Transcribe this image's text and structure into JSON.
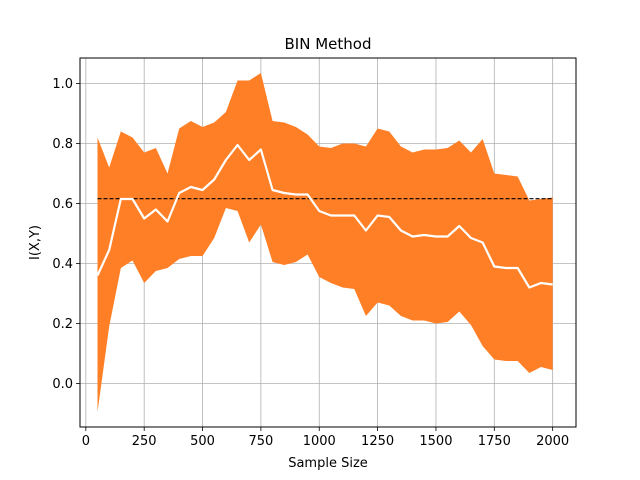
{
  "chart_data": {
    "type": "area",
    "title": "BIN Method",
    "xlabel": "Sample Size",
    "ylabel": "I(X,Y)",
    "xlim": [
      -25,
      2100
    ],
    "ylim": [
      -0.145,
      1.085
    ],
    "xticks": [
      0,
      250,
      500,
      750,
      1000,
      1250,
      1500,
      1750,
      2000
    ],
    "yticks": [
      0.0,
      0.2,
      0.4,
      0.6,
      0.8,
      1.0
    ],
    "xtick_labels": [
      "0",
      "250",
      "500",
      "750",
      "1000",
      "1250",
      "1500",
      "1750",
      "2000"
    ],
    "ytick_labels": [
      "0.0",
      "0.2",
      "0.4",
      "0.6",
      "0.8",
      "1.0"
    ],
    "grid": true,
    "x": [
      50,
      100,
      150,
      200,
      250,
      300,
      350,
      400,
      450,
      500,
      550,
      600,
      650,
      700,
      750,
      800,
      850,
      900,
      950,
      1000,
      1050,
      1100,
      1150,
      1200,
      1250,
      1300,
      1350,
      1400,
      1450,
      1500,
      1550,
      1600,
      1650,
      1700,
      1750,
      1800,
      1850,
      1900,
      1950,
      2000
    ],
    "band_upper": [
      0.82,
      0.72,
      0.84,
      0.82,
      0.77,
      0.785,
      0.7,
      0.85,
      0.875,
      0.855,
      0.87,
      0.905,
      1.01,
      1.01,
      1.035,
      0.875,
      0.87,
      0.855,
      0.83,
      0.79,
      0.785,
      0.8,
      0.8,
      0.79,
      0.85,
      0.84,
      0.79,
      0.77,
      0.78,
      0.78,
      0.785,
      0.81,
      0.77,
      0.815,
      0.7,
      0.695,
      0.69,
      0.61,
      0.615,
      0.62
    ],
    "band_lower": [
      -0.095,
      0.19,
      0.385,
      0.41,
      0.335,
      0.375,
      0.385,
      0.415,
      0.425,
      0.425,
      0.485,
      0.585,
      0.575,
      0.47,
      0.53,
      0.405,
      0.395,
      0.405,
      0.43,
      0.355,
      0.335,
      0.32,
      0.315,
      0.225,
      0.27,
      0.26,
      0.225,
      0.21,
      0.21,
      0.2,
      0.205,
      0.24,
      0.195,
      0.125,
      0.08,
      0.075,
      0.075,
      0.035,
      0.055,
      0.045
    ],
    "mean": [
      0.36,
      0.445,
      0.615,
      0.615,
      0.55,
      0.58,
      0.54,
      0.635,
      0.655,
      0.645,
      0.68,
      0.745,
      0.795,
      0.745,
      0.78,
      0.645,
      0.635,
      0.63,
      0.63,
      0.575,
      0.56,
      0.56,
      0.56,
      0.51,
      0.56,
      0.555,
      0.51,
      0.49,
      0.495,
      0.49,
      0.49,
      0.525,
      0.485,
      0.47,
      0.39,
      0.385,
      0.385,
      0.32,
      0.335,
      0.33
    ],
    "reference": {
      "x": [
        50,
        2000
      ],
      "y": 0.616
    },
    "colors": {
      "band": "#ff7f27",
      "mean": "#ffffff",
      "reference": "#000000",
      "grid": "#b0b0b0",
      "axes": "#000000"
    }
  }
}
